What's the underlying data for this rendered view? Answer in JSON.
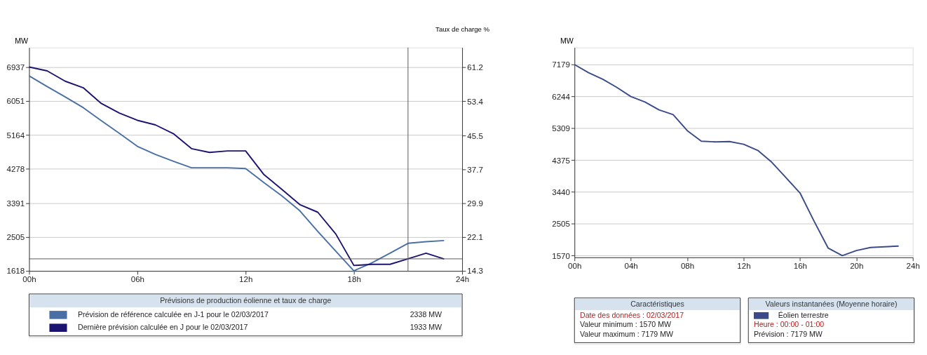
{
  "chart_data": [
    {
      "type": "line",
      "ylabel": "MW",
      "y2label": "Taux de charge %",
      "legend_title": "Prévisions de production éolienne et taux de charge",
      "legend": "bottom",
      "grid": "y",
      "marker": "none",
      "line_style": "solid",
      "x": [
        0,
        1,
        2,
        3,
        4,
        5,
        6,
        7,
        8,
        9,
        10,
        11,
        12,
        13,
        14,
        15,
        16,
        17,
        18,
        19,
        20,
        21,
        22,
        23
      ],
      "xlim": [
        0,
        24
      ],
      "xticks": [
        {
          "value": 0,
          "label": "00h"
        },
        {
          "value": 6,
          "label": "06h"
        },
        {
          "value": 12,
          "label": "12h"
        },
        {
          "value": 18,
          "label": "18h"
        },
        {
          "value": 24,
          "label": "24h"
        }
      ],
      "ylim": [
        1618,
        7450
      ],
      "yticks": [
        1618,
        2505,
        3391,
        4278,
        5164,
        6051,
        6937
      ],
      "y2lim": [
        14.3,
        65.8
      ],
      "y2ticks": [
        14.3,
        22.1,
        29.9,
        37.7,
        45.5,
        53.4,
        61.2
      ],
      "series": [
        {
          "name": "Prévision de référence calculée en J-1 pour le 02/03/2017",
          "color": "#4a6fa5",
          "values": [
            6710,
            6430,
            6160,
            5880,
            5540,
            5210,
            4870,
            4660,
            4480,
            4310,
            4310,
            4310,
            4290,
            3930,
            3580,
            3190,
            2650,
            2130,
            1620,
            1830,
            2080,
            2338,
            2380,
            2410
          ]
        },
        {
          "name": "Dernière prévision calculée en J pour le 02/03/2017",
          "color": "#1c1470",
          "values": [
            6940,
            6840,
            6570,
            6400,
            5990,
            5740,
            5550,
            5430,
            5200,
            4810,
            4710,
            4750,
            4750,
            4140,
            3750,
            3350,
            3150,
            2580,
            1760,
            1790,
            1790,
            1933,
            2080,
            1930
          ]
        }
      ],
      "ref_lines": [
        {
          "axis": "x",
          "value": 21,
          "color": "#555555"
        },
        {
          "axis": "y",
          "value": 1933,
          "color": "#555555"
        }
      ],
      "annotations": [
        "2338 MW",
        "1933 MW"
      ]
    },
    {
      "type": "line",
      "ylabel": "MW",
      "legend_title": "Valeurs instantanées (Moyenne horaire)",
      "legend": "bottom",
      "grid": "y",
      "marker": "none",
      "line_style": "solid",
      "x": [
        0,
        1,
        2,
        3,
        4,
        5,
        6,
        7,
        8,
        9,
        10,
        11,
        12,
        13,
        14,
        15,
        16,
        17,
        18,
        19,
        20,
        21,
        22,
        23
      ],
      "xlim": [
        0,
        24
      ],
      "xticks": [
        {
          "value": 0,
          "label": "00h"
        },
        {
          "value": 4,
          "label": "04h"
        },
        {
          "value": 8,
          "label": "08h"
        },
        {
          "value": 12,
          "label": "12h"
        },
        {
          "value": 16,
          "label": "16h"
        },
        {
          "value": 20,
          "label": "20h"
        },
        {
          "value": 24,
          "label": "24h"
        }
      ],
      "ylim": [
        1519,
        7680
      ],
      "yticks": [
        1570,
        2505,
        3440,
        4375,
        5309,
        6244,
        7179
      ],
      "series": [
        {
          "name": "Éolien terrestre",
          "color": "#3b4a8a",
          "values": [
            7179,
            6940,
            6750,
            6510,
            6240,
            6080,
            5850,
            5710,
            5240,
            4930,
            4910,
            4920,
            4840,
            4660,
            4310,
            3860,
            3410,
            2580,
            1790,
            1570,
            1720,
            1810,
            1830,
            1850
          ]
        }
      ],
      "annotations": [
        "Caractéristiques",
        "Date des données : 02/03/2017",
        "Valeur minimum : 1570 MW",
        "Valeur maximum : 7179 MW",
        "Heure : 00:00 - 01:00",
        "Prévision : 7179 MW"
      ]
    }
  ]
}
